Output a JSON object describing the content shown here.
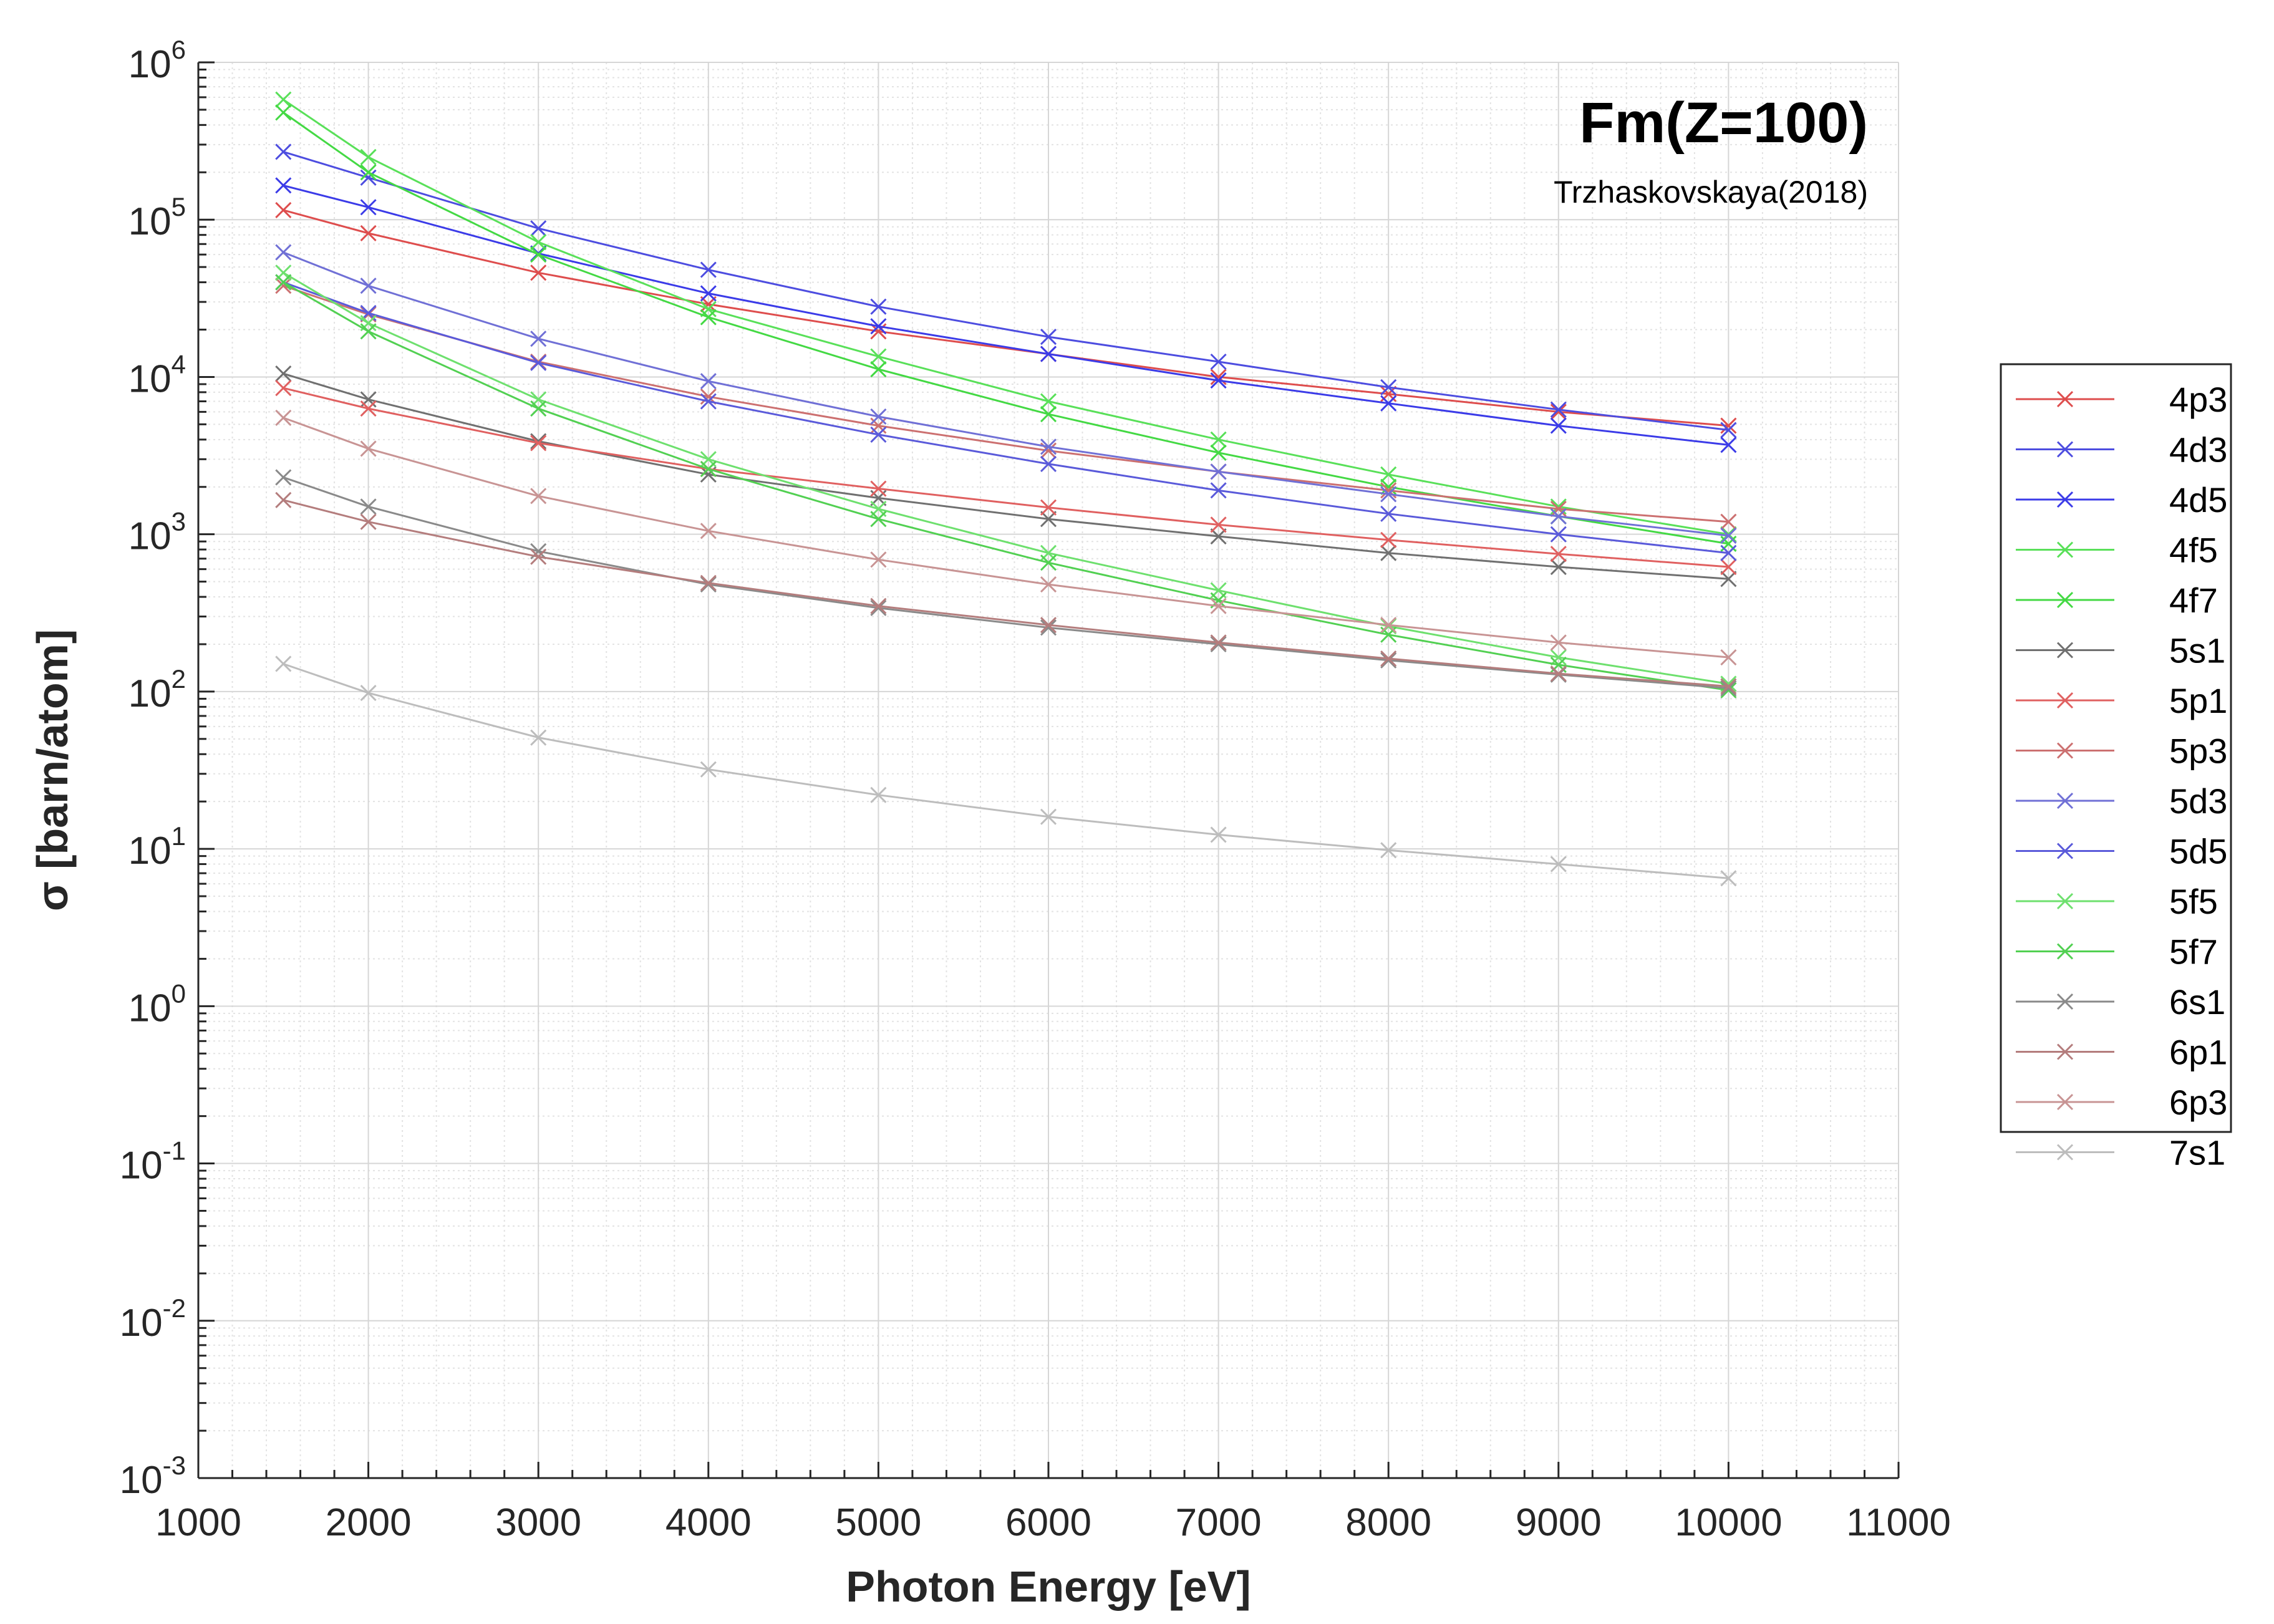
{
  "chart_data": {
    "type": "line",
    "title": "Fm(Z=100)",
    "subtitle": "Trzhaskovskaya(2018)",
    "xlabel": "Photon Energy [eV]",
    "ylabel": "σ [barn/atom]",
    "yscale": "log",
    "xlim": [
      1000,
      11000
    ],
    "ylim": [
      0.001,
      1000000
    ],
    "grid": true,
    "minor_grid": true,
    "legend_position": "outside-right",
    "marker": "x",
    "x_ticks": [
      "1000",
      "2000",
      "3000",
      "4000",
      "5000",
      "6000",
      "7000",
      "8000",
      "9000",
      "10000",
      "11000"
    ],
    "y_ticks": [
      {
        "base": "10",
        "exp": "6"
      },
      {
        "base": "10",
        "exp": "5"
      },
      {
        "base": "10",
        "exp": "4"
      },
      {
        "base": "10",
        "exp": "3"
      },
      {
        "base": "10",
        "exp": "2"
      },
      {
        "base": "10",
        "exp": "1"
      },
      {
        "base": "10",
        "exp": "0"
      },
      {
        "base": "10",
        "exp": "-1"
      },
      {
        "base": "10",
        "exp": "-2"
      },
      {
        "base": "10",
        "exp": "-3"
      }
    ],
    "x": [
      1500,
      2000,
      3000,
      4000,
      5000,
      6000,
      7000,
      8000,
      9000,
      10000
    ],
    "series": [
      {
        "name": "4p3",
        "color": "#de4d4d",
        "values": [
          115000,
          82000,
          46000,
          29000,
          19500,
          14000,
          10000,
          7800,
          6000,
          4900
        ]
      },
      {
        "name": "4d3",
        "color": "#4d4de0",
        "values": [
          270000,
          185000,
          88000,
          48000,
          28000,
          18000,
          12500,
          8600,
          6200,
          4600
        ]
      },
      {
        "name": "4d5",
        "color": "#3b3be8",
        "values": [
          165000,
          120000,
          61000,
          34000,
          21000,
          14000,
          9500,
          6800,
          4900,
          3700
        ]
      },
      {
        "name": "4f5",
        "color": "#59e059",
        "values": [
          580000,
          250000,
          72000,
          27000,
          13500,
          7000,
          4000,
          2400,
          1500,
          1000
        ]
      },
      {
        "name": "4f7",
        "color": "#44d944",
        "values": [
          480000,
          200000,
          60000,
          24000,
          11200,
          5800,
          3300,
          2000,
          1300,
          870
        ]
      },
      {
        "name": "5s1",
        "color": "#707070",
        "values": [
          10500,
          7200,
          3900,
          2400,
          1700,
          1250,
          970,
          760,
          620,
          520
        ]
      },
      {
        "name": "5p1",
        "color": "#e06060",
        "values": [
          8500,
          6300,
          3800,
          2600,
          1950,
          1480,
          1150,
          920,
          750,
          620
        ]
      },
      {
        "name": "5p3",
        "color": "#cc7070",
        "values": [
          38000,
          25000,
          12500,
          7500,
          4900,
          3400,
          2500,
          1900,
          1450,
          1200
        ]
      },
      {
        "name": "5d3",
        "color": "#7070d6",
        "values": [
          62000,
          38000,
          17500,
          9400,
          5600,
          3600,
          2500,
          1800,
          1300,
          980
        ]
      },
      {
        "name": "5d5",
        "color": "#5a5ada",
        "values": [
          40000,
          25500,
          12300,
          7000,
          4300,
          2800,
          1900,
          1350,
          1000,
          760
        ]
      },
      {
        "name": "5f5",
        "color": "#6ee06e",
        "values": [
          46000,
          22000,
          7200,
          3000,
          1450,
          760,
          440,
          260,
          165,
          112
        ]
      },
      {
        "name": "5f7",
        "color": "#52d052",
        "values": [
          40000,
          19500,
          6300,
          2600,
          1250,
          660,
          380,
          230,
          148,
          102
        ]
      },
      {
        "name": "6s1",
        "color": "#8a8a8a",
        "values": [
          2300,
          1500,
          780,
          480,
          340,
          255,
          200,
          158,
          128,
          105
        ]
      },
      {
        "name": "6p1",
        "color": "#b47d7d",
        "values": [
          1650,
          1200,
          720,
          490,
          350,
          265,
          205,
          162,
          130,
          108
        ]
      },
      {
        "name": "6p3",
        "color": "#c89494",
        "values": [
          5500,
          3500,
          1750,
          1050,
          690,
          480,
          350,
          265,
          205,
          165
        ]
      },
      {
        "name": "7s1",
        "color": "#bdbdbd",
        "values": [
          150,
          98,
          51,
          32,
          22,
          16,
          12.3,
          9.8,
          8.0,
          6.5
        ]
      }
    ]
  }
}
